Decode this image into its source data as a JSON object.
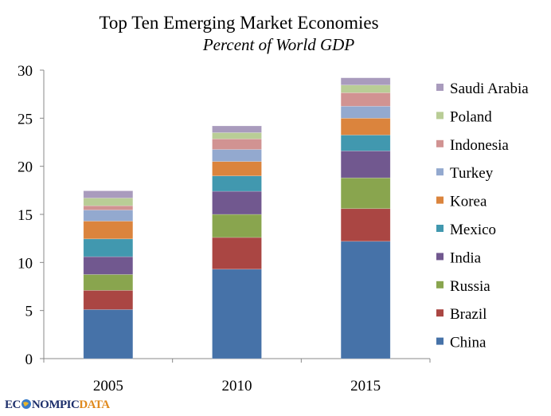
{
  "chart_data": {
    "type": "bar",
    "stacked": true,
    "title": "Top Ten Emerging Market Economies",
    "subtitle": "Percent of World GDP",
    "xlabel": "",
    "ylabel": "",
    "ylim": [
      0,
      30
    ],
    "yticks": [
      0,
      5,
      10,
      15,
      20,
      25,
      30
    ],
    "grid": false,
    "legend_placement": "right",
    "categories": [
      "2005",
      "2010",
      "2015"
    ],
    "series": [
      {
        "name": "China",
        "color": "#4672a8",
        "values": [
          5.1,
          9.3,
          12.2
        ]
      },
      {
        "name": "Brazil",
        "color": "#aa4643",
        "values": [
          2.0,
          3.3,
          3.4
        ]
      },
      {
        "name": "Russia",
        "color": "#89a54e",
        "values": [
          1.65,
          2.4,
          3.2
        ]
      },
      {
        "name": "India",
        "color": "#71588f",
        "values": [
          1.85,
          2.4,
          2.8
        ]
      },
      {
        "name": "Mexico",
        "color": "#4198af",
        "values": [
          1.85,
          1.6,
          1.65
        ]
      },
      {
        "name": "Korea",
        "color": "#db843d",
        "values": [
          1.85,
          1.5,
          1.75
        ]
      },
      {
        "name": "Turkey",
        "color": "#93a9cf",
        "values": [
          1.15,
          1.25,
          1.25
        ]
      },
      {
        "name": "Indonesia",
        "color": "#d19392",
        "values": [
          0.45,
          1.1,
          1.4
        ]
      },
      {
        "name": "Poland",
        "color": "#b9cd96",
        "values": [
          0.8,
          0.65,
          0.8
        ]
      },
      {
        "name": "Saudi Arabia",
        "color": "#a99bbd",
        "values": [
          0.75,
          0.7,
          0.75
        ]
      }
    ]
  },
  "logo": {
    "part1": "EC",
    "part2": "NOMPIC",
    "part3": "DATA",
    "full": "ECONOMPICDATA"
  }
}
